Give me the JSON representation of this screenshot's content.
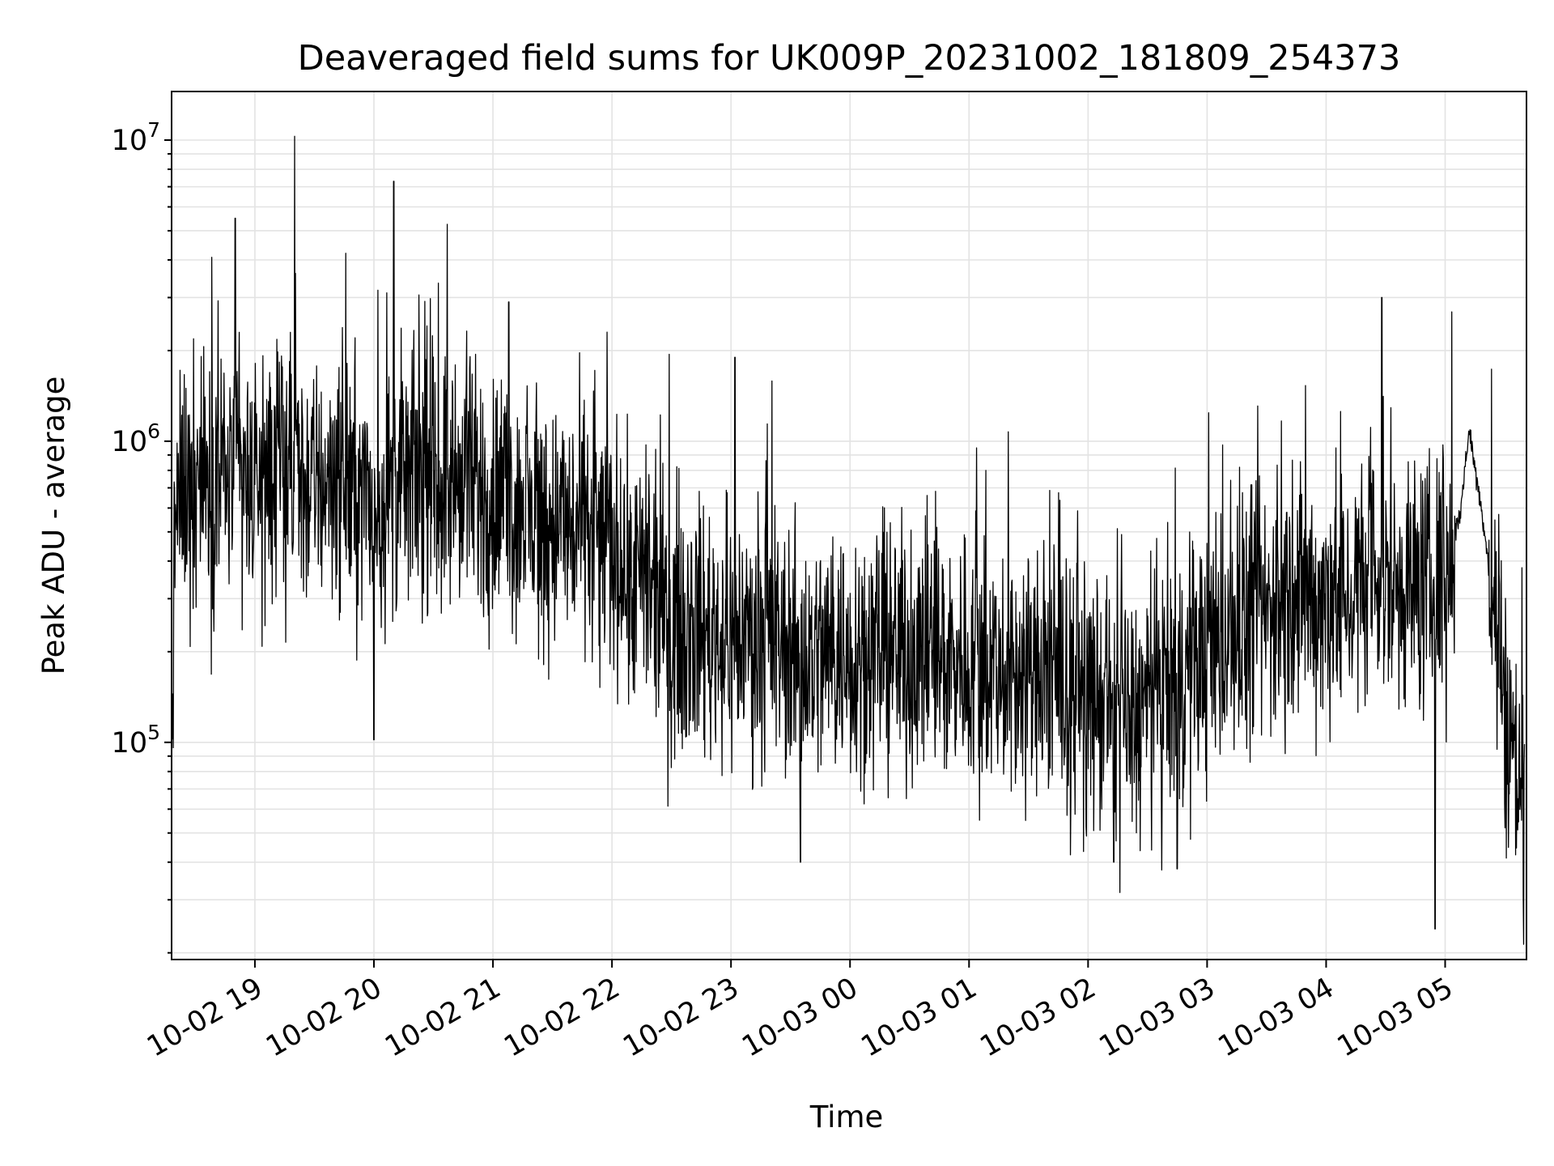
{
  "chart_data": {
    "type": "line",
    "title": "Deaveraged field sums for UK009P_20231002_181809_254373",
    "xlabel": "Time",
    "ylabel": "Peak ADU - average",
    "yscale": "log",
    "xlim": [
      "2023-10-02 18:18",
      "2023-10-03 05:41"
    ],
    "ylim": [
      19000,
      14500000
    ],
    "grid": true,
    "line_color": "#000000",
    "x_ticks": [
      {
        "value": "2023-10-02 19:00",
        "label": "10-02 19"
      },
      {
        "value": "2023-10-02 20:00",
        "label": "10-02 20"
      },
      {
        "value": "2023-10-02 21:00",
        "label": "10-02 21"
      },
      {
        "value": "2023-10-02 22:00",
        "label": "10-02 22"
      },
      {
        "value": "2023-10-02 23:00",
        "label": "10-02 23"
      },
      {
        "value": "2023-10-03 00:00",
        "label": "10-03 00"
      },
      {
        "value": "2023-10-03 01:00",
        "label": "10-03 01"
      },
      {
        "value": "2023-10-03 02:00",
        "label": "10-03 02"
      },
      {
        "value": "2023-10-03 03:00",
        "label": "10-03 03"
      },
      {
        "value": "2023-10-03 04:00",
        "label": "10-03 04"
      },
      {
        "value": "2023-10-03 05:00",
        "label": "10-03 05"
      }
    ],
    "y_ticks": [
      {
        "value": 100000,
        "base": "10",
        "exp": "5"
      },
      {
        "value": 1000000,
        "base": "10",
        "exp": "6"
      },
      {
        "value": 10000000,
        "base": "10",
        "exp": "7"
      }
    ],
    "series": [
      {
        "x": [
          "2023-10-02 18:18",
          "2023-10-02 18:20",
          "2023-10-02 18:30",
          "2023-10-02 18:40",
          "2023-10-02 18:50",
          "2023-10-02 19:00",
          "2023-10-02 19:10",
          "2023-10-02 19:20",
          "2023-10-02 19:30",
          "2023-10-02 19:40",
          "2023-10-02 19:50",
          "2023-10-02 20:00",
          "2023-10-02 20:10",
          "2023-10-02 20:20",
          "2023-10-02 20:30",
          "2023-10-02 20:40",
          "2023-10-02 20:50",
          "2023-10-02 21:00",
          "2023-10-02 21:10",
          "2023-10-02 21:20",
          "2023-10-02 21:30",
          "2023-10-02 21:40",
          "2023-10-02 21:50",
          "2023-10-02 22:00",
          "2023-10-02 22:10",
          "2023-10-02 22:20",
          "2023-10-02 22:30",
          "2023-10-02 22:40",
          "2023-10-02 22:50",
          "2023-10-02 23:00",
          "2023-10-02 23:10",
          "2023-10-02 23:20",
          "2023-10-02 23:30",
          "2023-10-02 23:40",
          "2023-10-02 23:50",
          "2023-10-03 00:00",
          "2023-10-03 00:10",
          "2023-10-03 00:20",
          "2023-10-03 00:30",
          "2023-10-03 00:40",
          "2023-10-03 00:50",
          "2023-10-03 01:00",
          "2023-10-03 01:10",
          "2023-10-03 01:20",
          "2023-10-03 01:30",
          "2023-10-03 01:40",
          "2023-10-03 01:50",
          "2023-10-03 02:00",
          "2023-10-03 02:10",
          "2023-10-03 02:20",
          "2023-10-03 02:30",
          "2023-10-03 02:40",
          "2023-10-03 02:50",
          "2023-10-03 03:00",
          "2023-10-03 03:10",
          "2023-10-03 03:20",
          "2023-10-03 03:30",
          "2023-10-03 03:40",
          "2023-10-03 03:50",
          "2023-10-03 04:00",
          "2023-10-03 04:10",
          "2023-10-03 04:20",
          "2023-10-03 04:30",
          "2023-10-03 04:40",
          "2023-10-03 04:50",
          "2023-10-03 05:00",
          "2023-10-03 05:08",
          "2023-10-03 05:12",
          "2023-10-03 05:20",
          "2023-10-03 05:30",
          "2023-10-03 05:40"
        ],
        "y": [
          100000,
          600000,
          800000,
          750000,
          850000,
          700000,
          800000,
          750000,
          700000,
          800000,
          700000,
          600000,
          700000,
          800000,
          750000,
          700000,
          700000,
          650000,
          600000,
          550000,
          550000,
          500000,
          500000,
          450000,
          350000,
          300000,
          250000,
          250000,
          230000,
          220000,
          230000,
          220000,
          200000,
          190000,
          200000,
          200000,
          210000,
          200000,
          200000,
          200000,
          190000,
          190000,
          180000,
          170000,
          170000,
          160000,
          150000,
          140000,
          130000,
          120000,
          130000,
          150000,
          170000,
          200000,
          220000,
          250000,
          270000,
          300000,
          300000,
          300000,
          320000,
          330000,
          350000,
          340000,
          330000,
          350000,
          600000,
          1100000,
          500000,
          130000,
          60000
        ],
        "spikes": [
          {
            "x": "2023-10-02 19:20",
            "y": 10300000
          },
          {
            "x": "2023-10-02 18:50",
            "y": 5500000
          },
          {
            "x": "2023-10-02 20:10",
            "y": 7300000
          },
          {
            "x": "2023-10-02 20:00",
            "y": 102000
          },
          {
            "x": "2023-10-02 21:08",
            "y": 2900000
          },
          {
            "x": "2023-10-02 23:02",
            "y": 1900000
          },
          {
            "x": "2023-10-02 23:35",
            "y": 40000
          },
          {
            "x": "2023-10-03 02:13",
            "y": 40000
          },
          {
            "x": "2023-10-03 02:45",
            "y": 38000
          },
          {
            "x": "2023-10-03 04:28",
            "y": 3000000
          },
          {
            "x": "2023-10-03 04:55",
            "y": 24000
          }
        ]
      }
    ]
  }
}
